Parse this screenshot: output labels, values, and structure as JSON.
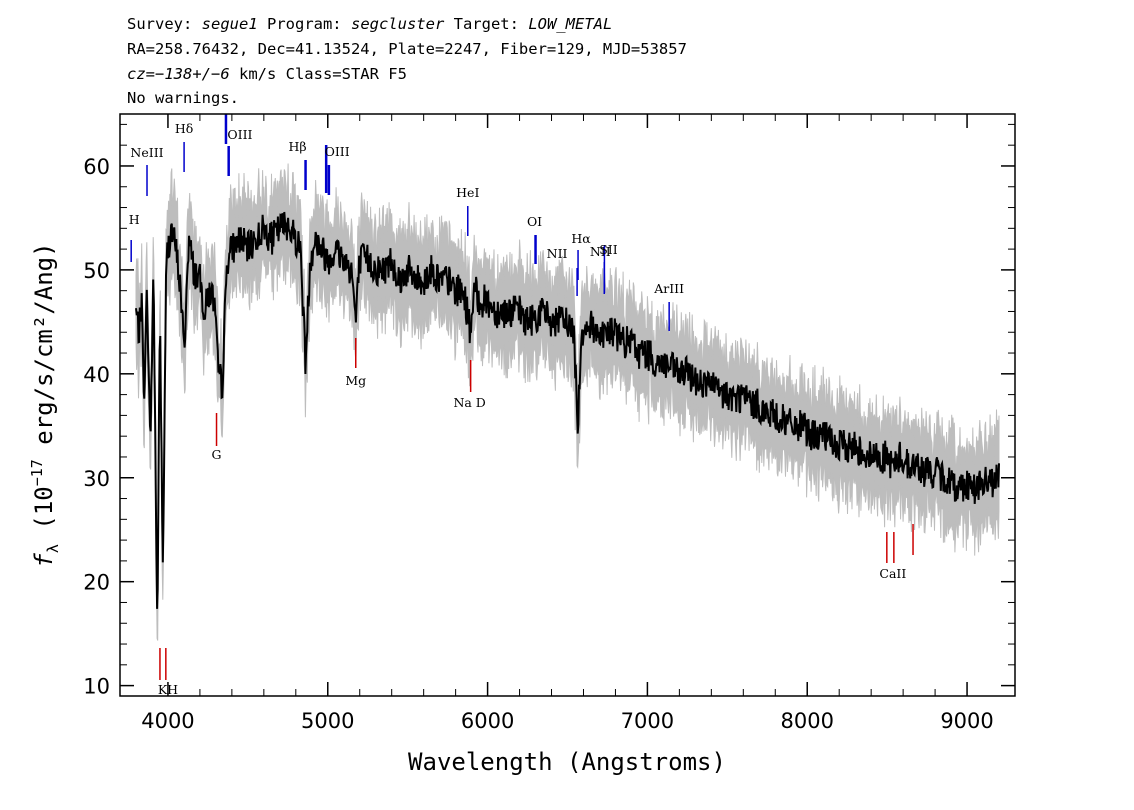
{
  "header": {
    "line1": {
      "survey_label": "Survey: ",
      "survey": "segue1",
      "program_label": " Program: ",
      "program": "segcluster",
      "target_label": " Target: ",
      "target": "LOW_METAL"
    },
    "line2": "RA=258.76432, Dec=41.13524, Plate=2247, Fiber=129, MJD=53857",
    "line3": {
      "cz": "cz=",
      "vel": "−138+/−6",
      "rest": " km/s Class=STAR F5"
    },
    "line4": "No warnings."
  },
  "chart_data": {
    "type": "line",
    "xlabel": "Wavelength (Angstroms)",
    "ylabel": {
      "prefix": "f",
      "sub": "λ",
      "mid": " (10",
      "sup": "−17",
      "suffix": " erg/s/cm²/Ang)"
    },
    "xlim": [
      3700,
      9300
    ],
    "ylim": [
      9,
      65
    ],
    "x_ticks": [
      "4000",
      "5000",
      "6000",
      "7000",
      "8000",
      "9000"
    ],
    "x_tick_values": [
      4000,
      5000,
      6000,
      7000,
      8000,
      9000
    ],
    "y_ticks": [
      "10",
      "20",
      "30",
      "40",
      "50",
      "60"
    ],
    "y_tick_values": [
      10,
      20,
      30,
      40,
      50,
      60
    ],
    "colors": {
      "flux": "#000000",
      "error": "#bdbdbd",
      "emission": "#0000cc",
      "absorption": "#cc0000"
    },
    "series": [
      {
        "type": "flux",
        "x": [
          3800,
          3820,
          3835,
          3850,
          3870,
          3889,
          3910,
          3933,
          3950,
          3968,
          3990,
          4020,
          4050,
          4080,
          4101,
          4130,
          4160,
          4200,
          4230,
          4260,
          4290,
          4315,
          4340,
          4370,
          4400,
          4450,
          4500,
          4550,
          4600,
          4650,
          4700,
          4750,
          4800,
          4830,
          4861,
          4890,
          4920,
          4960,
          5000,
          5050,
          5100,
          5150,
          5175,
          5200,
          5250,
          5300,
          5350,
          5400,
          5450,
          5500,
          5550,
          5600,
          5650,
          5700,
          5750,
          5800,
          5850,
          5893,
          5920,
          5950,
          6000,
          6050,
          6100,
          6150,
          6200,
          6250,
          6300,
          6350,
          6400,
          6450,
          6500,
          6540,
          6563,
          6590,
          6620,
          6650,
          6700,
          6750,
          6800,
          6850,
          6900,
          6950,
          7000,
          7050,
          7100,
          7150,
          7200,
          7250,
          7300,
          7350,
          7400,
          7450,
          7500,
          7550,
          7600,
          7650,
          7700,
          7750,
          7800,
          7850,
          7900,
          7950,
          8000,
          8050,
          8100,
          8150,
          8200,
          8250,
          8300,
          8350,
          8400,
          8450,
          8500,
          8542,
          8580,
          8620,
          8662,
          8700,
          8750,
          8800,
          8850,
          8900,
          8950,
          9000,
          9050,
          9100,
          9150,
          9200
        ],
        "y": [
          46,
          44,
          47,
          38,
          48,
          33,
          50,
          15,
          46,
          21,
          51,
          54,
          52,
          48,
          42,
          53,
          50,
          49,
          46,
          48,
          47,
          40,
          39,
          51,
          52,
          53,
          52,
          53,
          54,
          53,
          54,
          54.5,
          53,
          52,
          41,
          51,
          53,
          52,
          51,
          52,
          51,
          50,
          45,
          51,
          51,
          50,
          50,
          51,
          49,
          50,
          49,
          49,
          50,
          49,
          49,
          48,
          48,
          44,
          48,
          47,
          47,
          46,
          46,
          46,
          46,
          45,
          45.5,
          46,
          45,
          45,
          45,
          44,
          35,
          44,
          45,
          44.5,
          44,
          44,
          44,
          43,
          43,
          42,
          42,
          41,
          41,
          40.5,
          40,
          40,
          39.5,
          39,
          39,
          38,
          38,
          37.5,
          38,
          37,
          37,
          36,
          36,
          35.5,
          35,
          35,
          34.5,
          34,
          34,
          33.5,
          33,
          33,
          33,
          32.5,
          32,
          32,
          32,
          31,
          32,
          31.5,
          31,
          31,
          30.5,
          30.5,
          30,
          29.5,
          29,
          29.5,
          29,
          29.5,
          29.5,
          30
        ]
      }
    ],
    "emission_lines": [
      {
        "label": "H",
        "wave": 3770
      },
      {
        "label": "NeIII",
        "wave": 3869
      },
      {
        "label": "Hδ",
        "wave": 4101
      },
      {
        "label": "OIII",
        "wave": 4363
      },
      {
        "label": "Hβ",
        "wave": 4861
      },
      {
        "label": "OIII",
        "wave": 4990
      },
      {
        "label": "HeI",
        "wave": 5876
      },
      {
        "label": "OI",
        "wave": 6300
      },
      {
        "label": "NII",
        "wave": 6560
      },
      {
        "label": "Hα",
        "wave": 6566
      },
      {
        "label": "NII",
        "wave": 6730
      },
      {
        "label": "SII",
        "wave": 6731
      },
      {
        "label": "ArIII",
        "wave": 7136
      }
    ],
    "absorption_lines": [
      {
        "label": "KH",
        "wave": 3950
      },
      {
        "label": "G",
        "wave": 4304
      },
      {
        "label": "Mg",
        "wave": 5175
      },
      {
        "label": "Na D",
        "wave": 5894
      },
      {
        "label": "CaII",
        "wave": 8542
      }
    ]
  }
}
